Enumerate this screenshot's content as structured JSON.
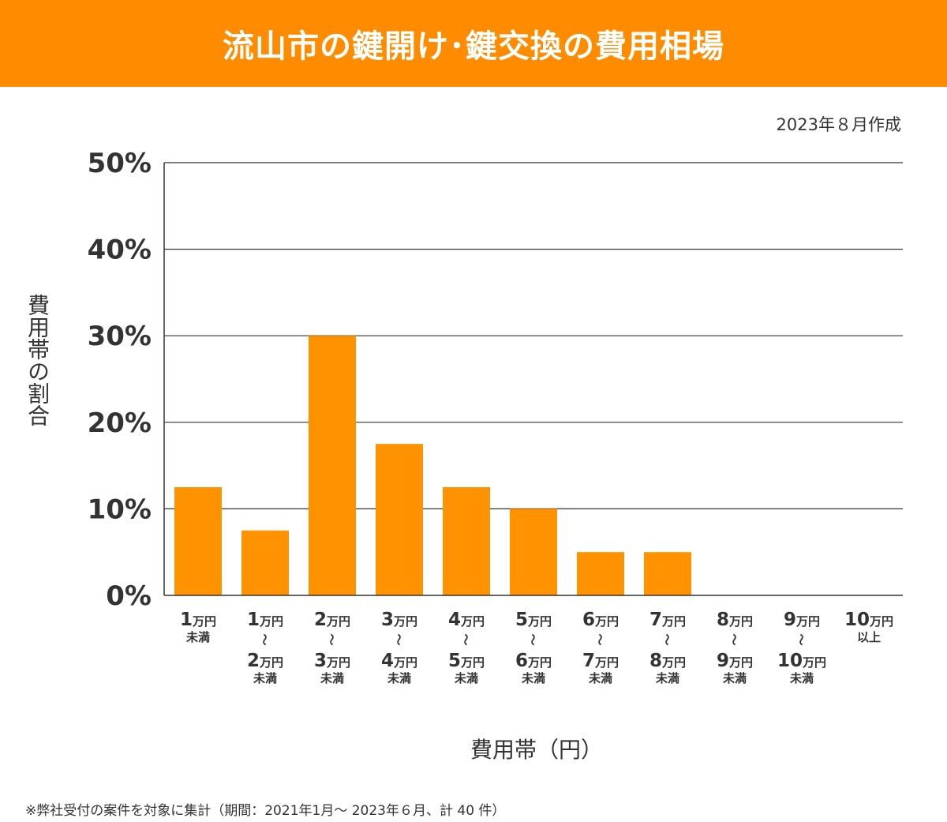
{
  "header": {
    "title": "流山市の鍵開け･鍵交換の費用相場"
  },
  "meta": {
    "created": "2023年８月作成"
  },
  "footnote": "※弊社受付の案件を対象に集計（期間：2021年1月～ 2023年６月、計 40 件）",
  "colors": {
    "accent": "#ff8c00",
    "bar": "#ff9200",
    "grid": "#333333"
  },
  "chart_data": {
    "type": "bar",
    "title": "流山市の鍵開け･鍵交換の費用相場",
    "xlabel": "費用帯（円）",
    "ylabel": "費用帯の割合",
    "ylim": [
      0,
      50
    ],
    "yticks": [
      0,
      10,
      20,
      30,
      40,
      50
    ],
    "ytick_labels": [
      "0%",
      "10%",
      "20%",
      "30%",
      "40%",
      "50%"
    ],
    "grid": true,
    "categories": [
      {
        "from": "1",
        "from_unit": "万円",
        "to": "",
        "to_unit": "",
        "suffix": "未満"
      },
      {
        "from": "1",
        "from_unit": "万円",
        "to": "2",
        "to_unit": "万円",
        "suffix": "未満"
      },
      {
        "from": "2",
        "from_unit": "万円",
        "to": "3",
        "to_unit": "万円",
        "suffix": "未満"
      },
      {
        "from": "3",
        "from_unit": "万円",
        "to": "4",
        "to_unit": "万円",
        "suffix": "未満"
      },
      {
        "from": "4",
        "from_unit": "万円",
        "to": "5",
        "to_unit": "万円",
        "suffix": "未満"
      },
      {
        "from": "5",
        "from_unit": "万円",
        "to": "6",
        "to_unit": "万円",
        "suffix": "未満"
      },
      {
        "from": "6",
        "from_unit": "万円",
        "to": "7",
        "to_unit": "万円",
        "suffix": "未満"
      },
      {
        "from": "7",
        "from_unit": "万円",
        "to": "8",
        "to_unit": "万円",
        "suffix": "未満"
      },
      {
        "from": "8",
        "from_unit": "万円",
        "to": "9",
        "to_unit": "万円",
        "suffix": "未満"
      },
      {
        "from": "9",
        "from_unit": "万円",
        "to": "10",
        "to_unit": "万円",
        "suffix": "未満"
      },
      {
        "from": "10",
        "from_unit": "万円",
        "to": "",
        "to_unit": "",
        "suffix": "以上"
      }
    ],
    "range_mark": "〜",
    "values": [
      12.5,
      7.5,
      30,
      17.5,
      12.5,
      10,
      5,
      5,
      0,
      0,
      0
    ]
  }
}
